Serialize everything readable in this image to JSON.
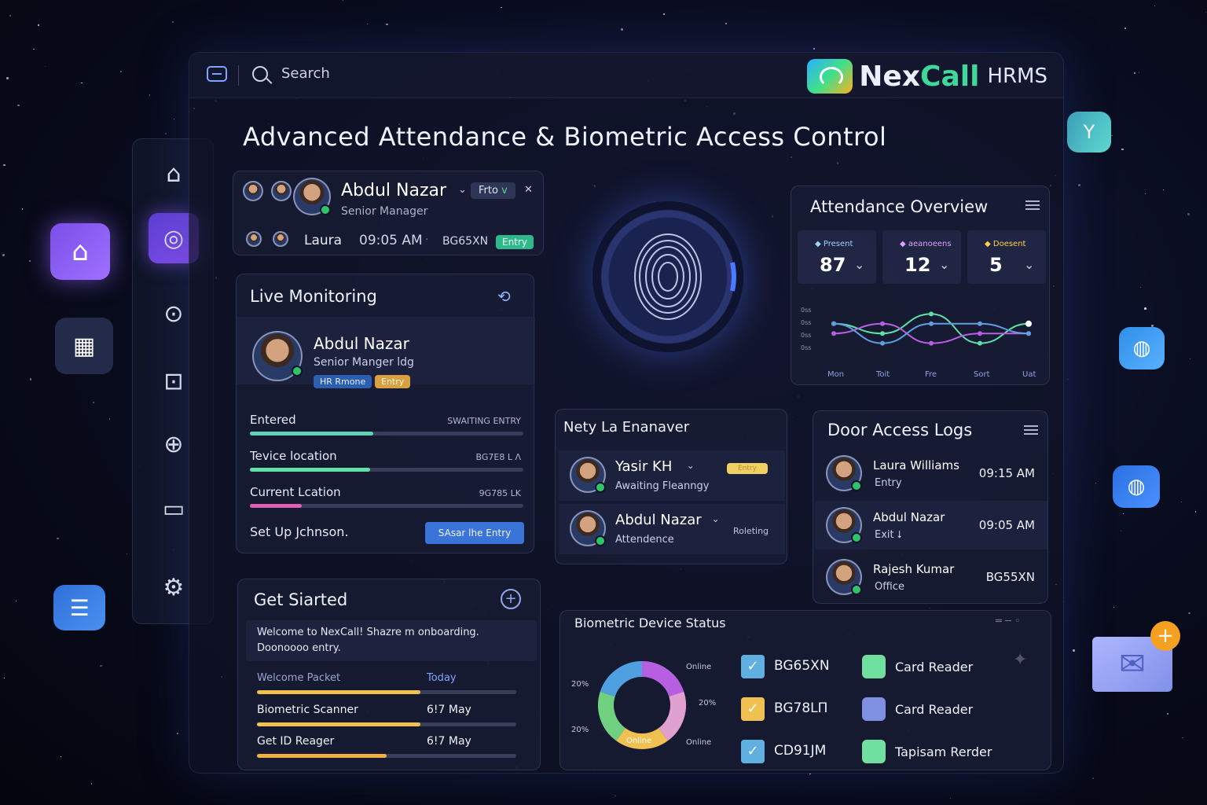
{
  "header": {
    "search_label": "Search",
    "brand_a": "Nex",
    "brand_b": "Call",
    "brand_suffix": "HRMS"
  },
  "page": {
    "title": "Advanced Attendance & Biometric Access Control"
  },
  "user_card": {
    "name": "Abdul Nazar",
    "role": "Senior Manager",
    "tag": "Frto",
    "tag_glyph": "v",
    "second_name": "Laura",
    "time": "09:05 AM",
    "code": "BG65XN",
    "entry_badge": "Entry"
  },
  "live_monitoring": {
    "title": "Live Monitoring",
    "name": "Abdul Nazar",
    "role": "Senior Manger ldg",
    "badge1": "HR Rmone",
    "badge2": "Entry",
    "rows": [
      {
        "label": "Entered",
        "value": "SWAITING ENTRY",
        "fill": 0.45,
        "color": "#5fd1b6"
      },
      {
        "label": "Tevice location",
        "value": "BG7E8 ᒪ ᐱ",
        "fill": 0.44,
        "color": "#5fe0a6"
      },
      {
        "label": "Current Lcation",
        "value": "9G785 LK",
        "fill": 0.19,
        "color": "#e05fb5"
      }
    ],
    "footer_label": "Set Up Jchnson.",
    "footer_button": "SAsar lhe Entry"
  },
  "attendance": {
    "title": "Attendance Overview",
    "stats": [
      {
        "label": "Present",
        "value": "87",
        "icon": "heart-icon",
        "color": "#9fd3ff"
      },
      {
        "label": "aeanoeens",
        "value": "12",
        "icon": "fork-icon",
        "color": "#e0a0ff"
      },
      {
        "label": "Doesent",
        "value": "5",
        "icon": "clock-icon",
        "color": "#ffd24a"
      }
    ],
    "y_ticks": [
      "0ss",
      "0ss",
      "0ss",
      "0ss"
    ],
    "x_labels": [
      "Mon",
      "Toit",
      "Fre",
      "Sort",
      "Uat"
    ]
  },
  "chart_data": {
    "type": "line",
    "x": [
      "Mon",
      "Toit",
      "Fre",
      "Sort",
      "Uat"
    ],
    "series": [
      {
        "values": [
          3,
          2,
          4,
          1,
          3
        ],
        "color": "#5fe0a6"
      },
      {
        "values": [
          2,
          3,
          1,
          2,
          2
        ],
        "color": "#b65fe0"
      },
      {
        "values": [
          3,
          1,
          3,
          3,
          2
        ],
        "color": "#5f9fe0"
      }
    ],
    "ylim": [
      0,
      5
    ]
  },
  "nearby": {
    "title": "Nety La Enanaver",
    "people": [
      {
        "name": "Yasir KH",
        "status": "Awaiting Fleanngy",
        "badge": "Entry"
      },
      {
        "name": "Abdul Nazar",
        "status": "Attendence",
        "badge": "Roleting"
      }
    ]
  },
  "door_logs": {
    "title": "Door Access Logs",
    "entries": [
      {
        "name": "Laura Williams",
        "sub": "Entry",
        "right": "09:15 AM"
      },
      {
        "name": "Abdul Nazar",
        "sub": "Exit ⭣",
        "right": "09:05 AM"
      },
      {
        "name": "Rajesh Kumar",
        "sub": "Office",
        "right": "BG55XN"
      }
    ]
  },
  "get_started": {
    "title": "Get Siarted",
    "welcome": "Welcome to NexCall! Shazre m onboarding.",
    "welcome2": "Doonoooo entry.",
    "header_left": "Welcome Packet",
    "header_right": "Today",
    "rows": [
      {
        "label": "Biometric Scanner",
        "value": "6!7 May",
        "fill": 0.63,
        "color": "#f0c050"
      },
      {
        "label": "Get ID Reager",
        "value": "6!7 May",
        "fill": 0.5,
        "color": "#f0b040"
      }
    ],
    "header_fill": 0.63
  },
  "device_status": {
    "title": "Biometric Device Status",
    "donut_labels": {
      "left_top": "20%",
      "left_bottom": "20%",
      "right": "20%",
      "online_top": "Online",
      "online_bottom": "Online",
      "online_center": "Online"
    },
    "donut": [
      {
        "value": 0.2,
        "color": "#b65fe0"
      },
      {
        "value": 0.2,
        "color": "#e0a0d0"
      },
      {
        "value": 0.2,
        "color": "#f0c050"
      },
      {
        "value": 0.2,
        "color": "#6fd080"
      },
      {
        "value": 0.2,
        "color": "#4fa0e0"
      }
    ],
    "devices": [
      {
        "code": "BG65XN",
        "check_color": "#5fb0e0",
        "type": "Card Reader",
        "type_icon_color": "#6fe0a0"
      },
      {
        "code": "BG78LП",
        "check_color": "#f0c050",
        "type": "Card Reader",
        "type_icon_color": "#8090e0"
      },
      {
        "code": "CD91JM",
        "check_color": "#5fb0e0",
        "type": "Tapisam Rerder",
        "type_icon_color": "#6fe0a0"
      }
    ]
  }
}
